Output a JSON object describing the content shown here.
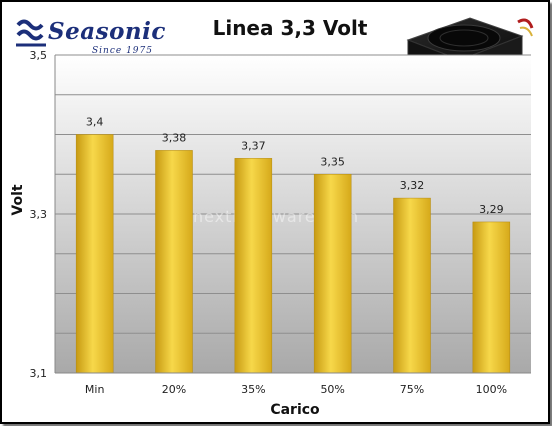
{
  "brand": {
    "name": "Seasonic",
    "tagline": "Since 1975"
  },
  "watermark": "nexthardware.com",
  "colors": {
    "bar": "#f2c72c",
    "bar_dark": "#c79a12",
    "brand": "#1c2f7a"
  },
  "chart_data": {
    "type": "bar",
    "title": "Linea 3,3 Volt",
    "xlabel": "Carico",
    "ylabel": "Volt",
    "categories": [
      "Min",
      "20%",
      "35%",
      "50%",
      "75%",
      "100%"
    ],
    "values": [
      3.4,
      3.38,
      3.37,
      3.35,
      3.32,
      3.29
    ],
    "value_labels": [
      "3,4",
      "3,38",
      "3,37",
      "3,35",
      "3,32",
      "3,29"
    ],
    "ylim": [
      3.1,
      3.5
    ],
    "yticks": [
      3.1,
      3.3,
      3.5
    ],
    "ytick_labels": [
      "3,1",
      "3,3",
      "3,5"
    ],
    "grid": true,
    "legend": "none"
  }
}
